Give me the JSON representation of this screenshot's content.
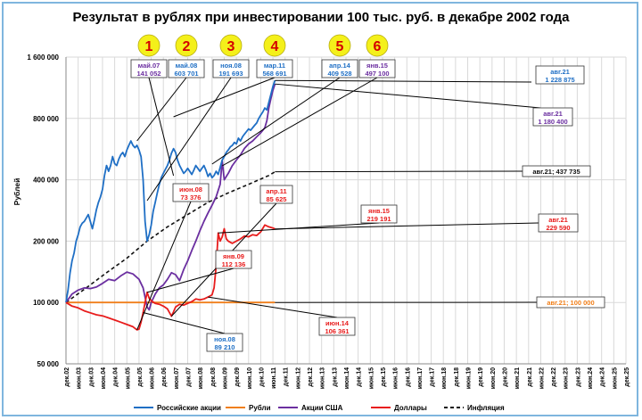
{
  "chart_data": {
    "type": "line",
    "title": "Результат в рублях при инвестировании 100 тыс. руб. в декабре 2002 года",
    "ylabel": "Рублей",
    "xlabel": "",
    "y_scale": "log",
    "ylim": [
      50000,
      1600000
    ],
    "y_ticks": [
      50000,
      100000,
      200000,
      400000,
      800000,
      1600000
    ],
    "y_tick_labels": [
      "50 000",
      "100 000",
      "200 000",
      "400 000",
      "800 000",
      "1 600 000"
    ],
    "x_tick_labels": [
      "дек.02",
      "июн.03",
      "дек.03",
      "июн.04",
      "дек.04",
      "июн.05",
      "дек.05",
      "июн.06",
      "дек.06",
      "июн.07",
      "дек.07",
      "июн.08",
      "дек.08",
      "июн.09",
      "дек.09",
      "июн.10",
      "дек.10",
      "июн.11",
      "дек.11",
      "июн.12",
      "дек.12",
      "июн.13",
      "дек.13",
      "июн.14",
      "дек.14",
      "июн.15",
      "дек.15",
      "июн.16",
      "дек.16",
      "июн.17",
      "дек.17",
      "июн.18",
      "дек.18",
      "июн.19",
      "дек.19",
      "июн.20",
      "дек.20",
      "июн.21",
      "дек.21",
      "июн.22",
      "дек.22",
      "июн.23",
      "дек.23",
      "июн.24",
      "дек.24",
      "июн.25",
      "дек.25"
    ],
    "grid": true,
    "legend": "bottom",
    "series": [
      {
        "name": "Российские акции",
        "color": "#1f6fc5",
        "style": "solid",
        "points": [
          [
            0,
            100000
          ],
          [
            1,
            115000
          ],
          [
            2,
            140000
          ],
          [
            3,
            160000
          ],
          [
            4,
            175000
          ],
          [
            5,
            200000
          ],
          [
            6,
            215000
          ],
          [
            7,
            235000
          ],
          [
            8,
            245000
          ],
          [
            9,
            250000
          ],
          [
            10,
            260000
          ],
          [
            11,
            270000
          ],
          [
            12,
            250000
          ],
          [
            13,
            230000
          ],
          [
            14,
            255000
          ],
          [
            15,
            285000
          ],
          [
            16,
            310000
          ],
          [
            17,
            330000
          ],
          [
            18,
            360000
          ],
          [
            19,
            420000
          ],
          [
            20,
            470000
          ],
          [
            21,
            440000
          ],
          [
            22,
            470000
          ],
          [
            23,
            520000
          ],
          [
            24,
            480000
          ],
          [
            25,
            470000
          ],
          [
            26,
            505000
          ],
          [
            27,
            530000
          ],
          [
            28,
            545000
          ],
          [
            29,
            520000
          ],
          [
            30,
            560000
          ],
          [
            31,
            590000
          ],
          [
            32,
            620000
          ],
          [
            33,
            590000
          ],
          [
            34,
            575000
          ],
          [
            35,
            590000
          ],
          [
            36,
            560000
          ],
          [
            37,
            520000
          ],
          [
            38,
            400000
          ],
          [
            39,
            250000
          ],
          [
            40,
            200000
          ],
          [
            41,
            215000
          ],
          [
            42,
            240000
          ],
          [
            43,
            280000
          ],
          [
            44,
            310000
          ],
          [
            45,
            345000
          ],
          [
            46,
            380000
          ],
          [
            47,
            410000
          ],
          [
            48,
            430000
          ],
          [
            49,
            450000
          ],
          [
            50,
            470000
          ],
          [
            51,
            500000
          ],
          [
            52,
            540000
          ],
          [
            53,
            568691
          ],
          [
            54,
            545000
          ],
          [
            55,
            500000
          ],
          [
            56,
            470000
          ],
          [
            57,
            450000
          ],
          [
            58,
            430000
          ],
          [
            59,
            440000
          ],
          [
            60,
            455000
          ],
          [
            61,
            440000
          ],
          [
            62,
            425000
          ],
          [
            63,
            445000
          ],
          [
            64,
            470000
          ],
          [
            65,
            455000
          ],
          [
            66,
            440000
          ],
          [
            67,
            455000
          ],
          [
            68,
            470000
          ],
          [
            69,
            445000
          ],
          [
            70,
            415000
          ],
          [
            71,
            430000
          ],
          [
            72,
            409528
          ],
          [
            73,
            420000
          ],
          [
            74,
            440000
          ],
          [
            75,
            425000
          ],
          [
            76,
            460000
          ],
          [
            77,
            500000
          ],
          [
            78,
            520000
          ],
          [
            79,
            545000
          ],
          [
            80,
            560000
          ],
          [
            81,
            580000
          ],
          [
            82,
            590000
          ],
          [
            83,
            610000
          ],
          [
            84,
            600000
          ],
          [
            85,
            640000
          ],
          [
            86,
            620000
          ],
          [
            87,
            650000
          ],
          [
            88,
            670000
          ],
          [
            89,
            690000
          ],
          [
            90,
            710000
          ],
          [
            91,
            700000
          ],
          [
            92,
            720000
          ],
          [
            93,
            740000
          ],
          [
            94,
            760000
          ],
          [
            95,
            800000
          ],
          [
            96,
            830000
          ],
          [
            97,
            860000
          ],
          [
            98,
            900000
          ],
          [
            99,
            880000
          ],
          [
            100,
            960000
          ],
          [
            101,
            1050000
          ],
          [
            102,
            1150000
          ],
          [
            103,
            1228875
          ]
        ]
      },
      {
        "name": "Рубли",
        "color": "#f07f1a",
        "style": "solid",
        "points": [
          [
            0,
            100000
          ],
          [
            103,
            100000
          ]
        ]
      },
      {
        "name": "Акции США",
        "color": "#6b2fa0",
        "style": "solid",
        "points": [
          [
            0,
            100000
          ],
          [
            3,
            110000
          ],
          [
            6,
            115000
          ],
          [
            9,
            118000
          ],
          [
            12,
            117000
          ],
          [
            15,
            119000
          ],
          [
            18,
            124000
          ],
          [
            21,
            130000
          ],
          [
            24,
            128000
          ],
          [
            27,
            135000
          ],
          [
            30,
            141052
          ],
          [
            33,
            138000
          ],
          [
            36,
            130000
          ],
          [
            38,
            118000
          ],
          [
            40,
            95000
          ],
          [
            41,
            92000
          ],
          [
            42,
            100000
          ],
          [
            44,
            110000
          ],
          [
            46,
            118000
          ],
          [
            48,
            122000
          ],
          [
            50,
            130000
          ],
          [
            52,
            140000
          ],
          [
            54,
            137000
          ],
          [
            56,
            128000
          ],
          [
            58,
            145000
          ],
          [
            60,
            160000
          ],
          [
            62,
            180000
          ],
          [
            64,
            200000
          ],
          [
            66,
            225000
          ],
          [
            68,
            250000
          ],
          [
            70,
            275000
          ],
          [
            72,
            300000
          ],
          [
            74,
            330000
          ],
          [
            76,
            380000
          ],
          [
            77,
            497100
          ],
          [
            78,
            400000
          ],
          [
            80,
            430000
          ],
          [
            82,
            470000
          ],
          [
            84,
            500000
          ],
          [
            86,
            530000
          ],
          [
            88,
            570000
          ],
          [
            90,
            600000
          ],
          [
            92,
            620000
          ],
          [
            94,
            650000
          ],
          [
            96,
            680000
          ],
          [
            98,
            720000
          ],
          [
            99,
            780000
          ],
          [
            100,
            900000
          ],
          [
            101,
            1000000
          ],
          [
            102,
            1100000
          ],
          [
            103,
            1180400
          ]
        ]
      },
      {
        "name": "Доллары",
        "color": "#e81c1c",
        "style": "solid",
        "points": [
          [
            0,
            100000
          ],
          [
            3,
            96000
          ],
          [
            6,
            94000
          ],
          [
            9,
            91000
          ],
          [
            12,
            89000
          ],
          [
            15,
            87000
          ],
          [
            18,
            86000
          ],
          [
            21,
            84000
          ],
          [
            24,
            82000
          ],
          [
            27,
            80000
          ],
          [
            30,
            78000
          ],
          [
            33,
            76000
          ],
          [
            35,
            73376
          ],
          [
            36,
            74000
          ],
          [
            37,
            80000
          ],
          [
            38,
            89210
          ],
          [
            39,
            100000
          ],
          [
            40,
            112136
          ],
          [
            41,
            105000
          ],
          [
            42,
            102000
          ],
          [
            44,
            99000
          ],
          [
            46,
            98000
          ],
          [
            48,
            96000
          ],
          [
            50,
            93000
          ],
          [
            52,
            85625
          ],
          [
            53,
            90000
          ],
          [
            54,
            95000
          ],
          [
            56,
            98000
          ],
          [
            58,
            97000
          ],
          [
            60,
            99000
          ],
          [
            62,
            101000
          ],
          [
            64,
            104000
          ],
          [
            66,
            103000
          ],
          [
            68,
            104000
          ],
          [
            70,
            106361
          ],
          [
            72,
            109000
          ],
          [
            73,
            118000
          ],
          [
            74,
            150000
          ],
          [
            75,
            219191
          ],
          [
            76,
            200000
          ],
          [
            77,
            210000
          ],
          [
            78,
            230000
          ],
          [
            79,
            205000
          ],
          [
            80,
            200000
          ],
          [
            82,
            195000
          ],
          [
            84,
            200000
          ],
          [
            86,
            205000
          ],
          [
            88,
            212000
          ],
          [
            90,
            210000
          ],
          [
            92,
            215000
          ],
          [
            94,
            213000
          ],
          [
            96,
            222000
          ],
          [
            98,
            240000
          ],
          [
            100,
            235000
          ],
          [
            102,
            232000
          ],
          [
            103,
            229590
          ]
        ]
      },
      {
        "name": "Инфляция",
        "color": "#111111",
        "style": "dashed",
        "points": [
          [
            0,
            100000
          ],
          [
            10,
            118000
          ],
          [
            20,
            140000
          ],
          [
            30,
            165000
          ],
          [
            40,
            200000
          ],
          [
            50,
            235000
          ],
          [
            60,
            270000
          ],
          [
            70,
            310000
          ],
          [
            80,
            345000
          ],
          [
            90,
            380000
          ],
          [
            100,
            420000
          ],
          [
            103,
            437735
          ]
        ]
      }
    ],
    "markers": [
      {
        "label": "1",
        "callout": "май.07",
        "value": "141 052",
        "color": "#6b2fa0"
      },
      {
        "label": "2",
        "callout": "май.08",
        "value": "603 701",
        "color": "#1f6fc5"
      },
      {
        "label": "3",
        "callout": "ноя.08",
        "value": "191 693",
        "color": "#1f6fc5"
      },
      {
        "label": "4",
        "callout": "мар.11",
        "value": "568 691",
        "color": "#1f6fc5"
      },
      {
        "label": "5",
        "callout": "апр.14",
        "value": "409 528",
        "color": "#1f6fc5"
      },
      {
        "label": "6",
        "callout": "янв.15",
        "value": "497 100",
        "color": "#6b2fa0"
      }
    ],
    "annotations": [
      {
        "date": "авг.21",
        "value": "1 228 875",
        "color": "#1f6fc5"
      },
      {
        "date": "авг.21",
        "value": "1 180 400",
        "color": "#6b2fa0"
      },
      {
        "date": "авг.21; 437 735",
        "value": "",
        "color": "#111111"
      },
      {
        "date": "авг.21",
        "value": "229 590",
        "color": "#e81c1c"
      },
      {
        "date": "авг.21;  100 000",
        "value": "",
        "color": "#f07f1a"
      },
      {
        "date": "июн.08",
        "value": "73 376",
        "color": "#e81c1c"
      },
      {
        "date": "ноя.08",
        "value": "89 210",
        "color": "#1f6fc5"
      },
      {
        "date": "янв.09",
        "value": "112 136",
        "color": "#e81c1c"
      },
      {
        "date": "апр.11",
        "value": "85 625",
        "color": "#e81c1c"
      },
      {
        "date": "янв.15",
        "value": "219 191",
        "color": "#e81c1c"
      },
      {
        "date": "июн.14",
        "value": "106 361",
        "color": "#e81c1c"
      }
    ]
  }
}
